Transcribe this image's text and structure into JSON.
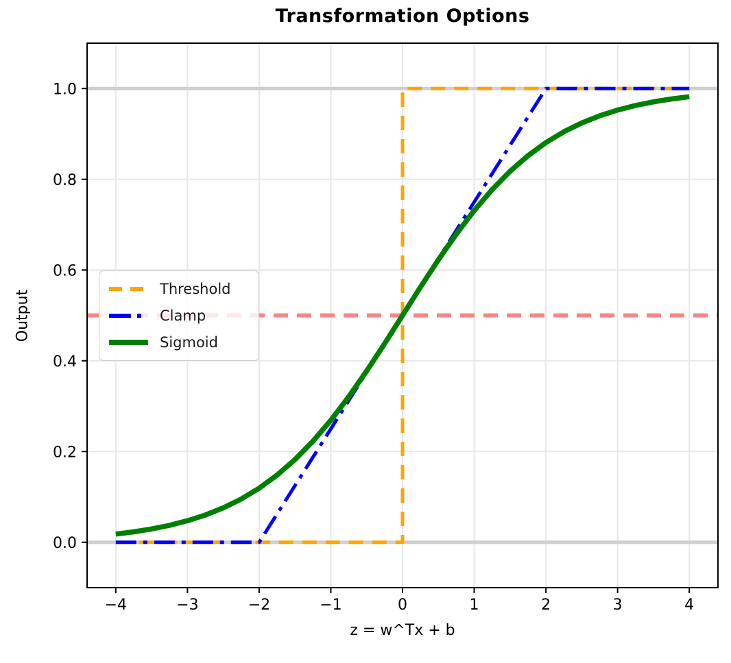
{
  "chart_data": {
    "type": "line",
    "title": "Transformation Options",
    "xlabel": "z = w^Tx + b",
    "ylabel": "Output",
    "xlim": [
      -4.4,
      4.4
    ],
    "ylim": [
      -0.1,
      1.1
    ],
    "grid": true,
    "grid_color": "#e8e8e8",
    "frame_color": "#000000",
    "xticks": {
      "values": [
        -4,
        -3,
        -2,
        -1,
        0,
        1,
        2,
        3,
        4
      ],
      "labels": [
        "−4",
        "−3",
        "−2",
        "−1",
        "0",
        "1",
        "2",
        "3",
        "4"
      ]
    },
    "yticks": {
      "values": [
        0.0,
        0.2,
        0.4,
        0.6,
        0.8,
        1.0
      ],
      "labels": [
        "0.0",
        "0.2",
        "0.4",
        "0.6",
        "0.8",
        "1.0"
      ]
    },
    "reference_lines": [
      {
        "name": "baseline-zero",
        "y": 0.0,
        "color": "#cfcfcf",
        "style": "solid",
        "width": 5
      },
      {
        "name": "baseline-one",
        "y": 1.0,
        "color": "#cfcfcf",
        "style": "solid",
        "width": 5
      },
      {
        "name": "half-level",
        "y": 0.5,
        "color": "#f78787",
        "style": "dashed",
        "width": 6
      }
    ],
    "series": [
      {
        "name": "Threshold",
        "color": "#ffa500",
        "style": "dashed",
        "width": 5,
        "points": [
          [
            -4,
            0
          ],
          [
            0,
            0
          ],
          [
            0,
            1
          ],
          [
            4,
            1
          ]
        ]
      },
      {
        "name": "Clamp",
        "color": "#0000ff",
        "style": "dashdot",
        "width": 5,
        "points": [
          [
            -4,
            0
          ],
          [
            -2,
            0
          ],
          [
            2,
            1
          ],
          [
            4,
            1
          ]
        ]
      },
      {
        "name": "Sigmoid",
        "color": "#008000",
        "style": "solid",
        "width": 7.5,
        "points": [
          [
            -4.0,
            0.018
          ],
          [
            -3.75,
            0.023
          ],
          [
            -3.5,
            0.0293
          ],
          [
            -3.25,
            0.0374
          ],
          [
            -3.0,
            0.0474
          ],
          [
            -2.75,
            0.0601
          ],
          [
            -2.5,
            0.0759
          ],
          [
            -2.25,
            0.0953
          ],
          [
            -2.0,
            0.1192
          ],
          [
            -1.75,
            0.148
          ],
          [
            -1.5,
            0.1824
          ],
          [
            -1.25,
            0.2227
          ],
          [
            -1.0,
            0.2689
          ],
          [
            -0.75,
            0.3208
          ],
          [
            -0.5,
            0.3775
          ],
          [
            -0.25,
            0.4378
          ],
          [
            0.0,
            0.5
          ],
          [
            0.25,
            0.5622
          ],
          [
            0.5,
            0.6225
          ],
          [
            0.75,
            0.6792
          ],
          [
            1.0,
            0.7311
          ],
          [
            1.25,
            0.7773
          ],
          [
            1.5,
            0.8176
          ],
          [
            1.75,
            0.852
          ],
          [
            2.0,
            0.8808
          ],
          [
            2.25,
            0.9047
          ],
          [
            2.5,
            0.9241
          ],
          [
            2.75,
            0.9399
          ],
          [
            3.0,
            0.9526
          ],
          [
            3.25,
            0.9626
          ],
          [
            3.5,
            0.9707
          ],
          [
            3.75,
            0.977
          ],
          [
            4.0,
            0.982
          ]
        ]
      }
    ],
    "legend": {
      "position": "center-left",
      "entries": [
        "Threshold",
        "Clamp",
        "Sigmoid"
      ]
    }
  }
}
